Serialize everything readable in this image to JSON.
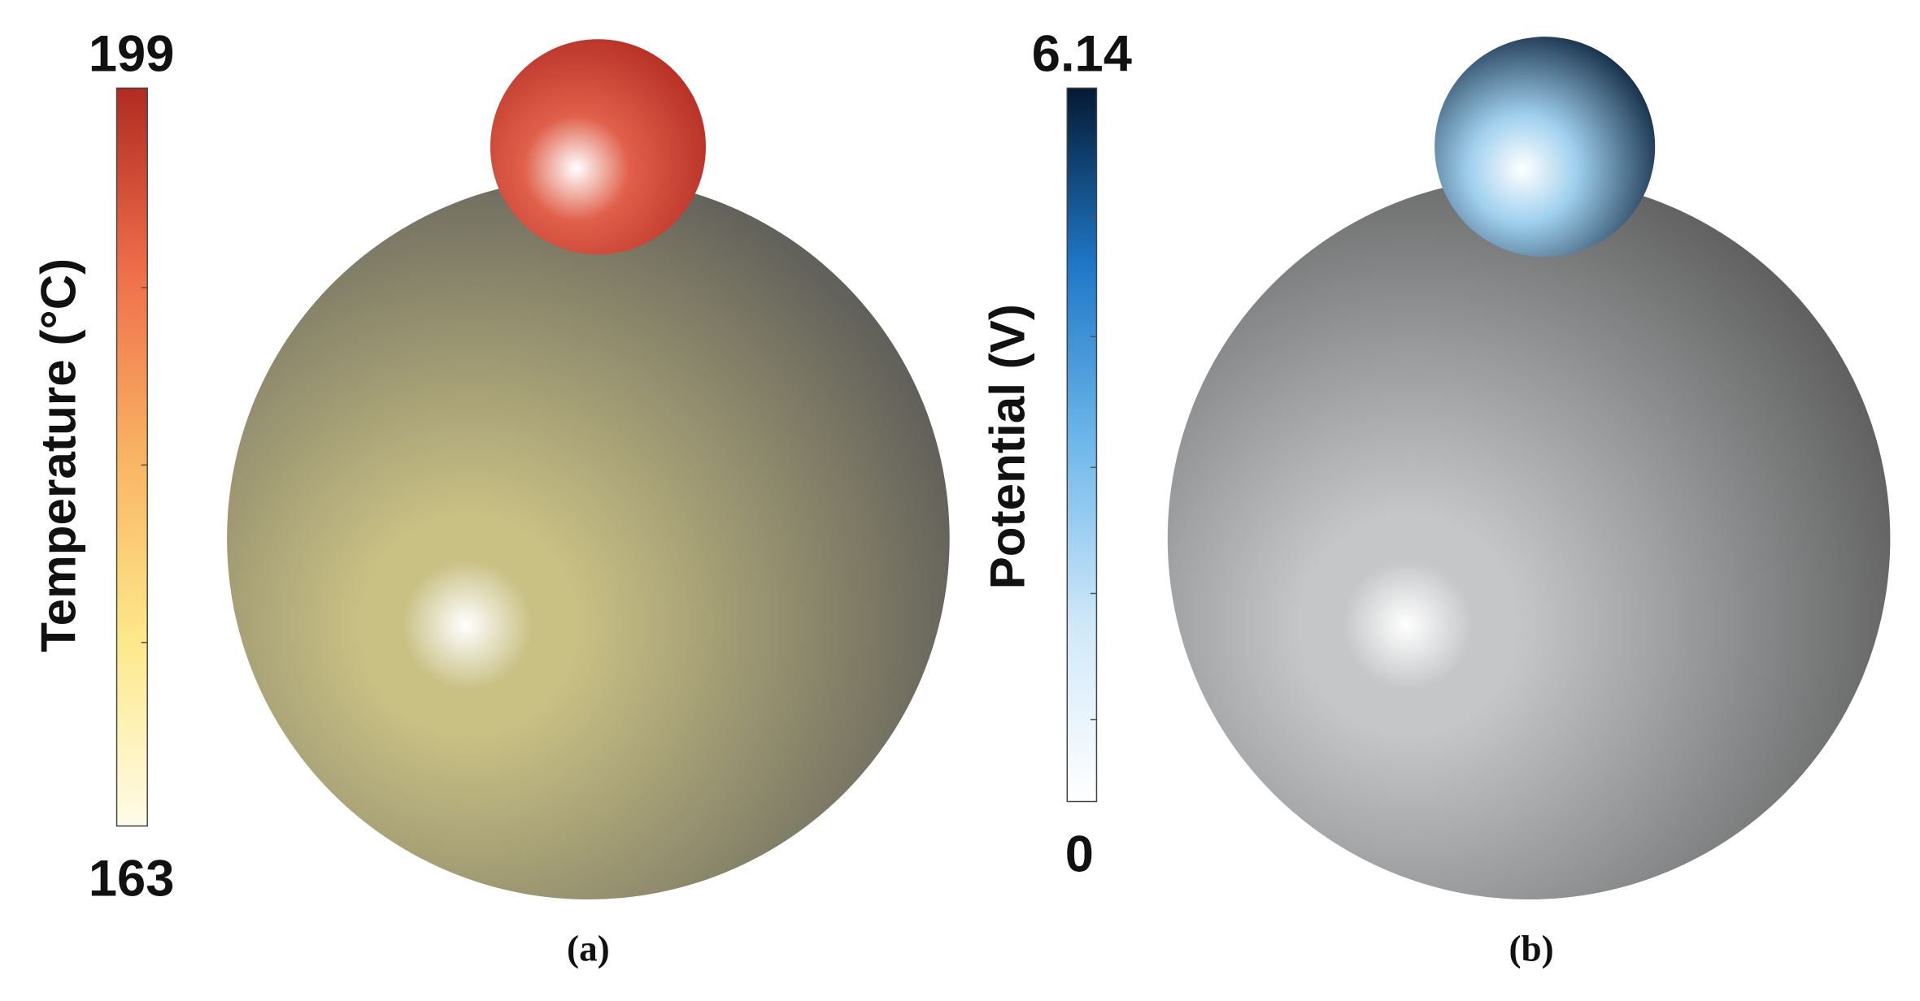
{
  "panels": [
    {
      "caption": "(a)",
      "colorbar": {
        "title": "Temperature (°C)",
        "max": 199,
        "min": 163,
        "colors": [
          "#fffbe8",
          "#fde98a",
          "#f9b463",
          "#ee6f4a",
          "#b22a22"
        ]
      },
      "body_color": "#c9c084",
      "cap_color": "#e0604a"
    },
    {
      "caption": "(b)",
      "colorbar": {
        "title": "Potential (V)",
        "max": 6.14,
        "min": 0,
        "colors": [
          "#ffffff",
          "#cfe8f8",
          "#6fb8ea",
          "#1f78c8",
          "#051a33"
        ]
      },
      "body_color": "#c4c6c8",
      "cap_color": "#9fd0ee"
    }
  ]
}
